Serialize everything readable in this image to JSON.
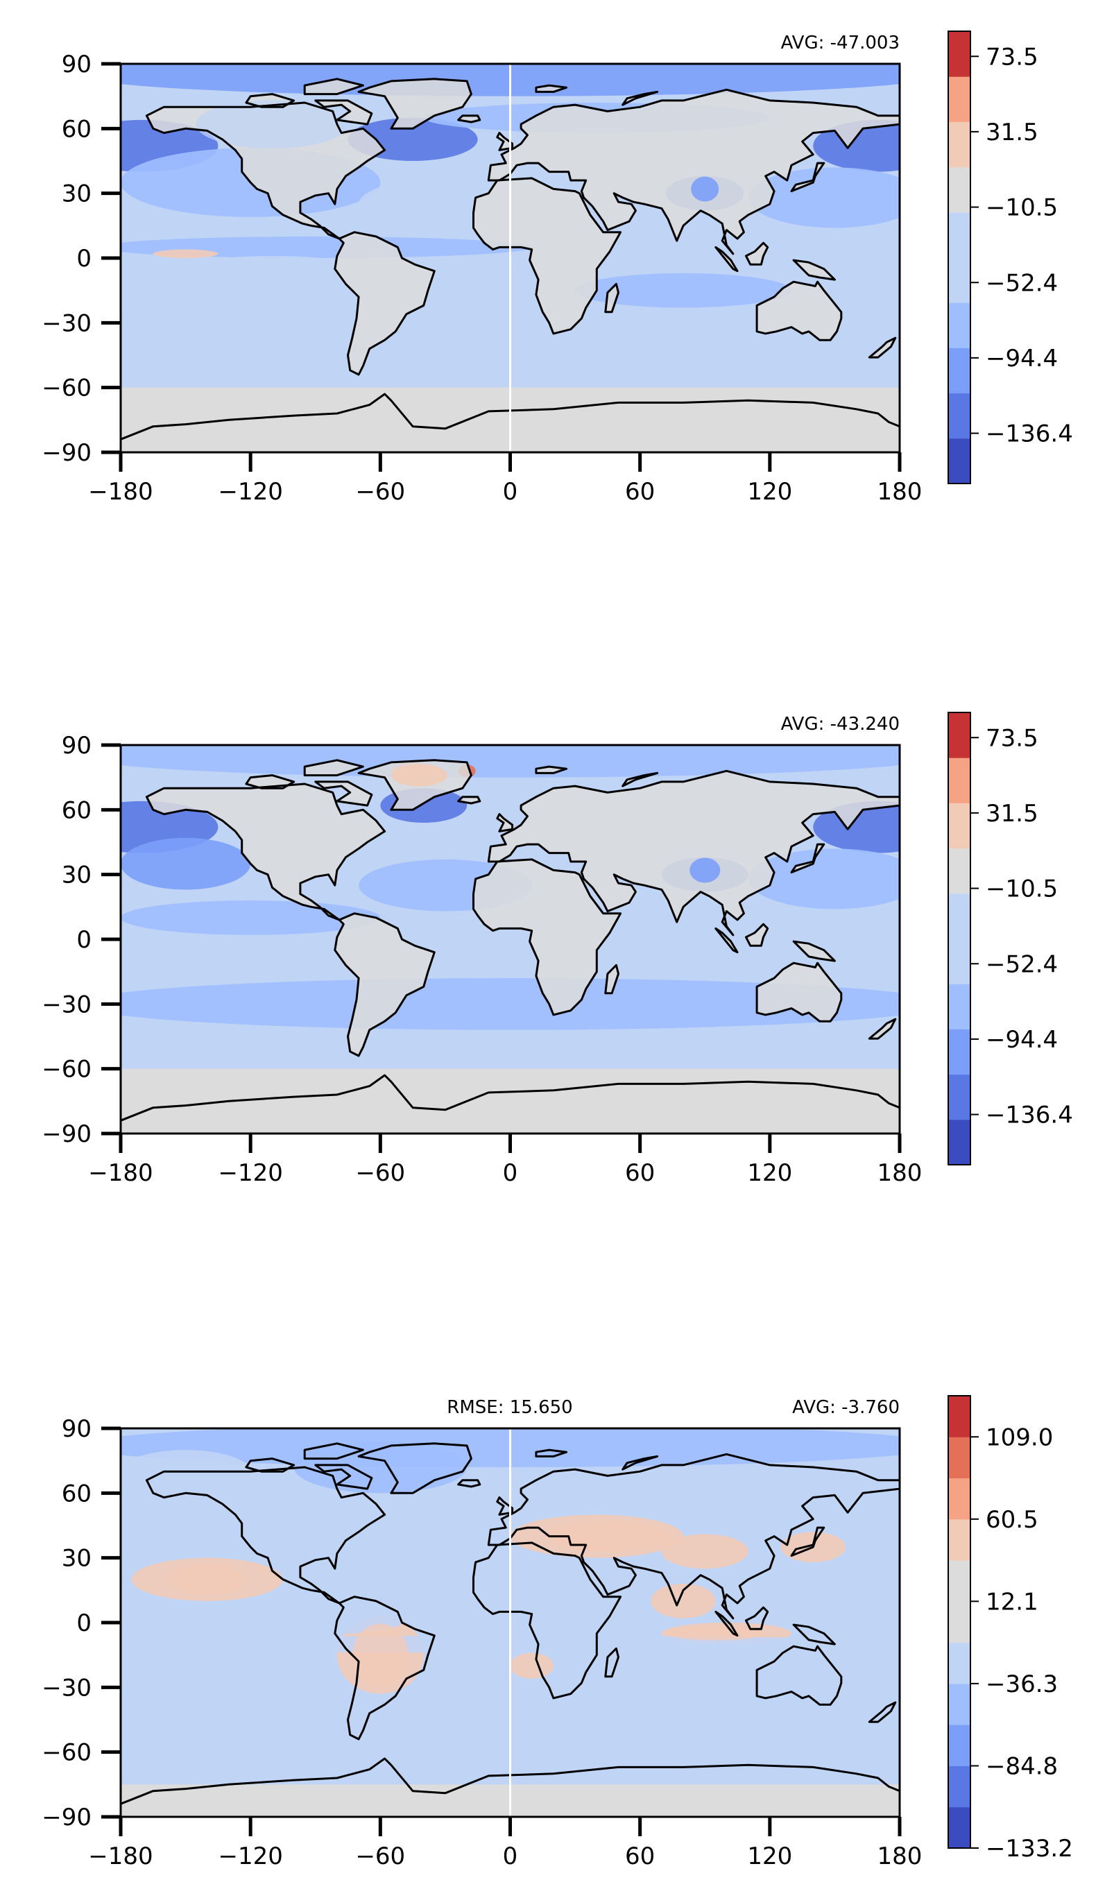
{
  "figure": {
    "panels": [
      {
        "avg_label": "AVG: -47.003",
        "rmse_label": "",
        "show_meridian": true,
        "colorbar": {
          "tick_labels": [
            "73.5",
            "31.5",
            "−10.5",
            "−52.4",
            "−94.4",
            "−136.4"
          ]
        }
      },
      {
        "avg_label": "AVG: -43.240",
        "rmse_label": "",
        "show_meridian": false,
        "colorbar": {
          "tick_labels": [
            "73.5",
            "31.5",
            "−10.5",
            "−52.4",
            "−94.4",
            "−136.4"
          ]
        }
      },
      {
        "avg_label": "AVG: -3.760",
        "rmse_label": "RMSE: 15.650",
        "show_meridian": true,
        "colorbar": {
          "tick_labels": [
            "109.0",
            "60.5",
            "12.1",
            "−36.3",
            "−84.8",
            "−133.2"
          ]
        }
      }
    ],
    "x_tick_labels": [
      "−180",
      "−120",
      "−60",
      "0",
      "60",
      "120",
      "180"
    ],
    "y_tick_labels": [
      "90",
      "60",
      "30",
      "0",
      "−30",
      "−60",
      "−90"
    ],
    "colors": {
      "cmap": [
        "#3b4cc0",
        "#5a78e4",
        "#7b9ff9",
        "#9ebeff",
        "#c0d4f5",
        "#dddcdc",
        "#f2cbb7",
        "#f6a385",
        "#e57058",
        "#c53334"
      ],
      "land_neutral": "#dcdcdc",
      "ocean_base": "#c0d4f5"
    }
  },
  "chart_data": [
    {
      "type": "heatmap",
      "title": "",
      "annotation": "AVG: -47.003",
      "xlim": [
        -180,
        180
      ],
      "ylim": [
        -90,
        90
      ],
      "x_ticks": [
        -180,
        -120,
        -60,
        0,
        60,
        120,
        180
      ],
      "y_ticks": [
        90,
        60,
        30,
        0,
        -30,
        -60,
        -90
      ],
      "colorbar_ticks": [
        73.5,
        31.5,
        -10.5,
        -52.4,
        -94.4,
        -136.4
      ],
      "colorbar_range": [
        -157.4,
        94.5
      ],
      "average": -47.003
    },
    {
      "type": "heatmap",
      "title": "",
      "annotation": "AVG: -43.240",
      "xlim": [
        -180,
        180
      ],
      "ylim": [
        -90,
        90
      ],
      "x_ticks": [
        -180,
        -120,
        -60,
        0,
        60,
        120,
        180
      ],
      "y_ticks": [
        90,
        60,
        30,
        0,
        -30,
        -60,
        -90
      ],
      "colorbar_ticks": [
        73.5,
        31.5,
        -10.5,
        -52.4,
        -94.4,
        -136.4
      ],
      "colorbar_range": [
        -157.4,
        94.5
      ],
      "average": -43.24
    },
    {
      "type": "heatmap",
      "title": "",
      "annotation": "RMSE: 15.650 / AVG: -3.760",
      "xlim": [
        -180,
        180
      ],
      "ylim": [
        -90,
        90
      ],
      "x_ticks": [
        -180,
        -120,
        -60,
        0,
        60,
        120,
        180
      ],
      "y_ticks": [
        90,
        60,
        30,
        0,
        -30,
        -60,
        -90
      ],
      "colorbar_ticks": [
        109.0,
        60.5,
        12.1,
        -36.3,
        -84.8,
        -133.2
      ],
      "colorbar_range": [
        -133.2,
        133.2
      ],
      "average": -3.76,
      "rmse": 15.65
    }
  ]
}
